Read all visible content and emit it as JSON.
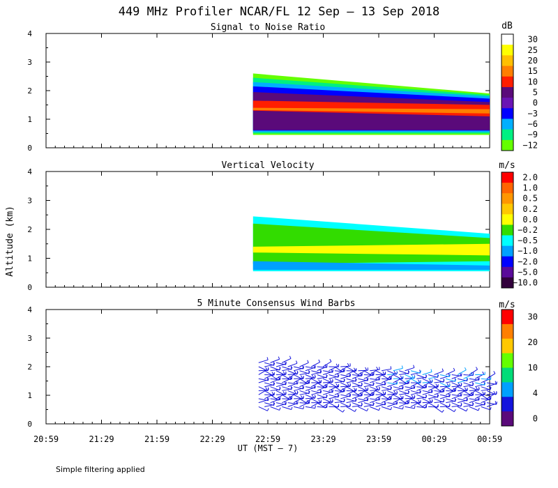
{
  "title": "449 MHz Profiler NCAR/FL 12 Sep – 13 Sep 2018",
  "x_axis": {
    "label": "UT  (MST – 7)",
    "ticks": [
      "20:59",
      "21:29",
      "21:59",
      "22:29",
      "22:59",
      "23:29",
      "23:59",
      "00:29",
      "00:59"
    ]
  },
  "y_axis": {
    "label": "Altitude (km)",
    "ticks": [
      "0",
      "1",
      "2",
      "3",
      "4"
    ],
    "range": [
      0,
      4
    ]
  },
  "footnote": "Simple filtering applied",
  "chart_data": [
    {
      "type": "heatmap",
      "title": "Signal to Noise Ratio",
      "unit": "dB",
      "data_start": "22:51",
      "data_end": "00:59",
      "colorbar": {
        "labels": [
          "30",
          "25",
          "20",
          "15",
          "10",
          "5",
          "0",
          "−3",
          "−6",
          "−9",
          "−12"
        ],
        "colors": [
          "#ffffff",
          "#ffff00",
          "#ffbf00",
          "#ff7f00",
          "#ff1e00",
          "#5a0a7a",
          "#6a14b4",
          "#0000ff",
          "#00afff",
          "#00f082",
          "#64ff00"
        ]
      },
      "layers": [
        {
          "color": "#64ff00",
          "bottom_start": 0.45,
          "bottom_end": 0.45,
          "top_start": 2.6,
          "top_end": 1.9
        },
        {
          "color": "#00f082",
          "bottom_start": 0.5,
          "bottom_end": 0.5,
          "top_start": 2.45,
          "top_end": 1.85
        },
        {
          "color": "#00afff",
          "bottom_start": 0.55,
          "bottom_end": 0.55,
          "top_start": 2.3,
          "top_end": 1.8
        },
        {
          "color": "#0000ff",
          "bottom_start": 0.6,
          "bottom_end": 0.6,
          "top_start": 2.15,
          "top_end": 1.72
        },
        {
          "color": "#5a0a7a",
          "bottom_start": 0.62,
          "bottom_end": 0.62,
          "top_start": 1.95,
          "top_end": 1.6
        },
        {
          "color": "#ff1e00",
          "bottom_start": 1.3,
          "bottom_end": 1.1,
          "top_start": 1.65,
          "top_end": 1.5
        },
        {
          "color": "#ff7f00",
          "bottom_start": 1.32,
          "bottom_end": 1.2,
          "top_start": 1.4,
          "top_end": 1.35
        }
      ]
    },
    {
      "type": "heatmap",
      "title": "Vertical Velocity",
      "unit": "m/s",
      "data_start": "22:51",
      "data_end": "00:59",
      "colorbar": {
        "labels": [
          "2.0",
          "1.0",
          "0.5",
          "0.2",
          "0.0",
          "−0.2",
          "−0.5",
          "−1.0",
          "−2.0",
          "−5.0",
          "−10.0"
        ],
        "colors": [
          "#ff0000",
          "#ff6400",
          "#ff9600",
          "#ffc800",
          "#ffff00",
          "#32dc00",
          "#00ffff",
          "#00a0ff",
          "#0000ff",
          "#5a0a9a",
          "#32003c"
        ]
      },
      "layers": [
        {
          "color": "#00ffff",
          "bottom_start": 0.55,
          "bottom_end": 0.55,
          "top_start": 2.45,
          "top_end": 1.85
        },
        {
          "color": "#32dc00",
          "bottom_start": 0.8,
          "bottom_end": 0.9,
          "top_start": 2.2,
          "top_end": 1.7
        },
        {
          "color": "#ffff00",
          "bottom_start": 1.2,
          "bottom_end": 1.1,
          "top_start": 1.4,
          "top_end": 1.5
        },
        {
          "color": "#00a0ff",
          "bottom_start": 0.6,
          "bottom_end": 0.6,
          "top_start": 0.9,
          "top_end": 0.75
        }
      ]
    },
    {
      "type": "wind_barbs",
      "title": "5 Minute Consensus Wind Barbs",
      "unit": "m/s",
      "data_start": "22:51",
      "data_end": "00:59",
      "height_range_km": [
        0.6,
        2.2
      ],
      "colorbar": {
        "labels": [
          "30",
          "20",
          "10",
          "4",
          "0"
        ],
        "colors": [
          "#ff0000",
          "#ff7f00",
          "#ffc800",
          "#64ff00",
          "#00dc78",
          "#00a0ff",
          "#1414dc",
          "#5a0a7a"
        ]
      }
    }
  ]
}
